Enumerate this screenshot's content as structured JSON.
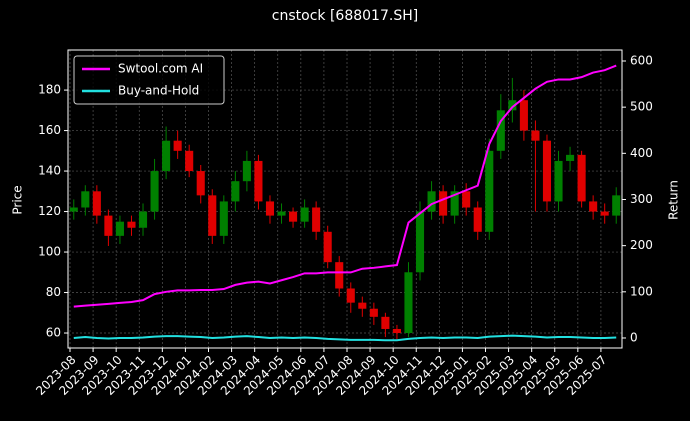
{
  "chart_data": {
    "type": "candlestick",
    "title": "cnstock [688017.SH]",
    "ylabel": "Price",
    "y2label": "Return",
    "grid": true,
    "legend": "upper left",
    "up_color": "#008000",
    "down_color": "#e00000",
    "categories": [
      "2023-08",
      null,
      "2023-09",
      null,
      "2023-10",
      null,
      "2023-11",
      null,
      "2023-12",
      null,
      "2024-01",
      null,
      "2024-02",
      null,
      "2024-03",
      null,
      "2024-04",
      null,
      "2024-05",
      null,
      "2024-06",
      null,
      "2024-07",
      null,
      "2024-08",
      null,
      "2024-09",
      null,
      "2024-10",
      null,
      "2024-11",
      null,
      "2024-12",
      null,
      "2025-01",
      null,
      "2025-02",
      null,
      "2025-03",
      null,
      "2025-04",
      null,
      "2025-05",
      null,
      "2025-06",
      null,
      "2025-07",
      null
    ],
    "open": [
      120,
      122,
      130,
      118,
      108,
      115,
      112,
      120,
      140,
      155,
      150,
      140,
      128,
      108,
      125,
      135,
      145,
      125,
      118,
      120,
      115,
      122,
      110,
      95,
      82,
      75,
      72,
      68,
      62,
      60,
      90,
      120,
      130,
      118,
      130,
      122,
      110,
      150,
      170,
      175,
      160,
      155,
      125,
      145,
      148,
      125,
      120,
      118
    ],
    "high": [
      126,
      133,
      133,
      121,
      118,
      118,
      124,
      146,
      162,
      160,
      153,
      143,
      131,
      128,
      140,
      150,
      148,
      128,
      124,
      122,
      126,
      125,
      113,
      98,
      85,
      78,
      75,
      70,
      64,
      95,
      125,
      135,
      133,
      133,
      134,
      125,
      156,
      178,
      186,
      180,
      165,
      158,
      150,
      152,
      150,
      128,
      124,
      132
    ],
    "low": [
      116,
      118,
      114,
      103,
      104,
      108,
      108,
      116,
      136,
      146,
      137,
      124,
      104,
      104,
      120,
      130,
      121,
      114,
      114,
      112,
      112,
      106,
      92,
      78,
      70,
      68,
      64,
      58,
      57,
      58,
      86,
      116,
      114,
      114,
      118,
      106,
      106,
      146,
      164,
      155,
      120,
      120,
      120,
      140,
      122,
      116,
      114,
      114
    ],
    "close": [
      122,
      130,
      118,
      108,
      115,
      112,
      120,
      140,
      155,
      150,
      140,
      128,
      108,
      125,
      135,
      145,
      125,
      118,
      120,
      115,
      122,
      110,
      95,
      82,
      75,
      72,
      68,
      62,
      60,
      90,
      120,
      130,
      118,
      130,
      122,
      110,
      150,
      170,
      175,
      160,
      155,
      125,
      145,
      148,
      125,
      120,
      118,
      128
    ],
    "series": [
      {
        "name": "Swtool.com AI",
        "color": "#ff00ff",
        "axis": "y2",
        "values": [
          68,
          70,
          72,
          74,
          76,
          78,
          82,
          95,
          100,
          103,
          103,
          104,
          104,
          106,
          115,
          120,
          122,
          118,
          125,
          132,
          140,
          140,
          142,
          142,
          142,
          150,
          152,
          155,
          158,
          250,
          270,
          290,
          300,
          310,
          320,
          330,
          420,
          470,
          500,
          520,
          540,
          555,
          560,
          560,
          565,
          575,
          580,
          590
        ]
      },
      {
        "name": "Buy-and-Hold",
        "color": "#22e0e0",
        "axis": "y2",
        "values": [
          0,
          2,
          0,
          -1,
          0,
          0,
          1,
          3,
          4,
          4,
          3,
          2,
          0,
          1,
          3,
          4,
          2,
          0,
          1,
          0,
          1,
          0,
          -2,
          -3,
          -4,
          -4,
          -4,
          -5,
          -5,
          -2,
          0,
          1,
          0,
          1,
          1,
          0,
          3,
          4,
          5,
          4,
          3,
          1,
          2,
          2,
          1,
          0,
          0,
          1
        ]
      }
    ],
    "ylim": [
      52.6,
      199.8
    ],
    "yticks": [
      60,
      80,
      100,
      120,
      140,
      160,
      180
    ],
    "y2lim": [
      -21.7,
      623.8
    ],
    "y2ticks": [
      0,
      100,
      200,
      300,
      400,
      500,
      600
    ]
  }
}
